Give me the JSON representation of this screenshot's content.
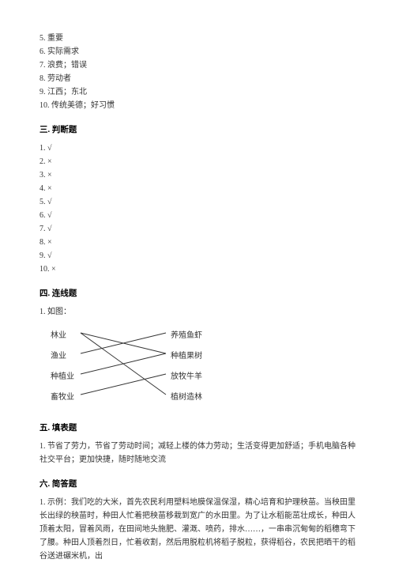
{
  "fillList": [
    {
      "n": "5.",
      "text": "重要"
    },
    {
      "n": "6.",
      "text": "实际需求"
    },
    {
      "n": "7.",
      "text": "浪费；错误"
    },
    {
      "n": "8.",
      "text": "劳动者"
    },
    {
      "n": "9.",
      "text": "江西；东北"
    },
    {
      "n": "10.",
      "text": "传统美德；好习惯"
    }
  ],
  "section3": {
    "title": "三. 判断题"
  },
  "judgeList": [
    {
      "n": "1.",
      "mark": "√"
    },
    {
      "n": "2.",
      "mark": "×"
    },
    {
      "n": "3.",
      "mark": "×"
    },
    {
      "n": "4.",
      "mark": "×"
    },
    {
      "n": "5.",
      "mark": "√"
    },
    {
      "n": "6.",
      "mark": "√"
    },
    {
      "n": "7.",
      "mark": "√"
    },
    {
      "n": "8.",
      "mark": "×"
    },
    {
      "n": "9.",
      "mark": "√"
    },
    {
      "n": "10.",
      "mark": "×"
    }
  ],
  "section4": {
    "title": "四. 连线题",
    "intro": "1. 如图："
  },
  "matching": {
    "left": [
      "林业",
      "渔业",
      "种植业",
      "畜牧业"
    ],
    "right": [
      "养殖鱼虾",
      "种植果树",
      "放牧牛羊",
      "植树造林"
    ],
    "leftY": [
      12,
      38,
      64,
      90
    ],
    "rightY": [
      12,
      38,
      64,
      90
    ],
    "lineColor": "#333333",
    "lineWidth": 1,
    "lineStartX": 44,
    "lineEndX": 152,
    "edges": [
      {
        "from": 0,
        "to": 1
      },
      {
        "from": 0,
        "to": 3
      },
      {
        "from": 1,
        "to": 0
      },
      {
        "from": 2,
        "to": 1
      },
      {
        "from": 3,
        "to": 2
      }
    ]
  },
  "section5": {
    "title": "五. 填表题",
    "content": "1. 节省了劳力，节省了劳动时间；减轻上楼的体力劳动；生活变得更加舒适；手机电脑各种社交平台；更加快捷，随时随地交流"
  },
  "section6": {
    "title": "六. 简答题",
    "content": "1. 示例：我们吃的大米，首先农民利用塑料地膜保温保湿，精心培育和护理秧苗。当秧田里长出绿的秧苗时，种田人忙着把秧苗移栽到宽广的水田里。为了让水稻能茁壮成长，种田人顶着太阳，冒着风雨，在田间地头施肥、灌溉、喷药，排水……，一串串沉甸甸的稻穗弯下了腰。种田人顶着烈日，忙着收割，然后用脱粒机将稻子脱粒，获得稻谷，农民把晒干的稻谷送进碾米机，出"
  }
}
